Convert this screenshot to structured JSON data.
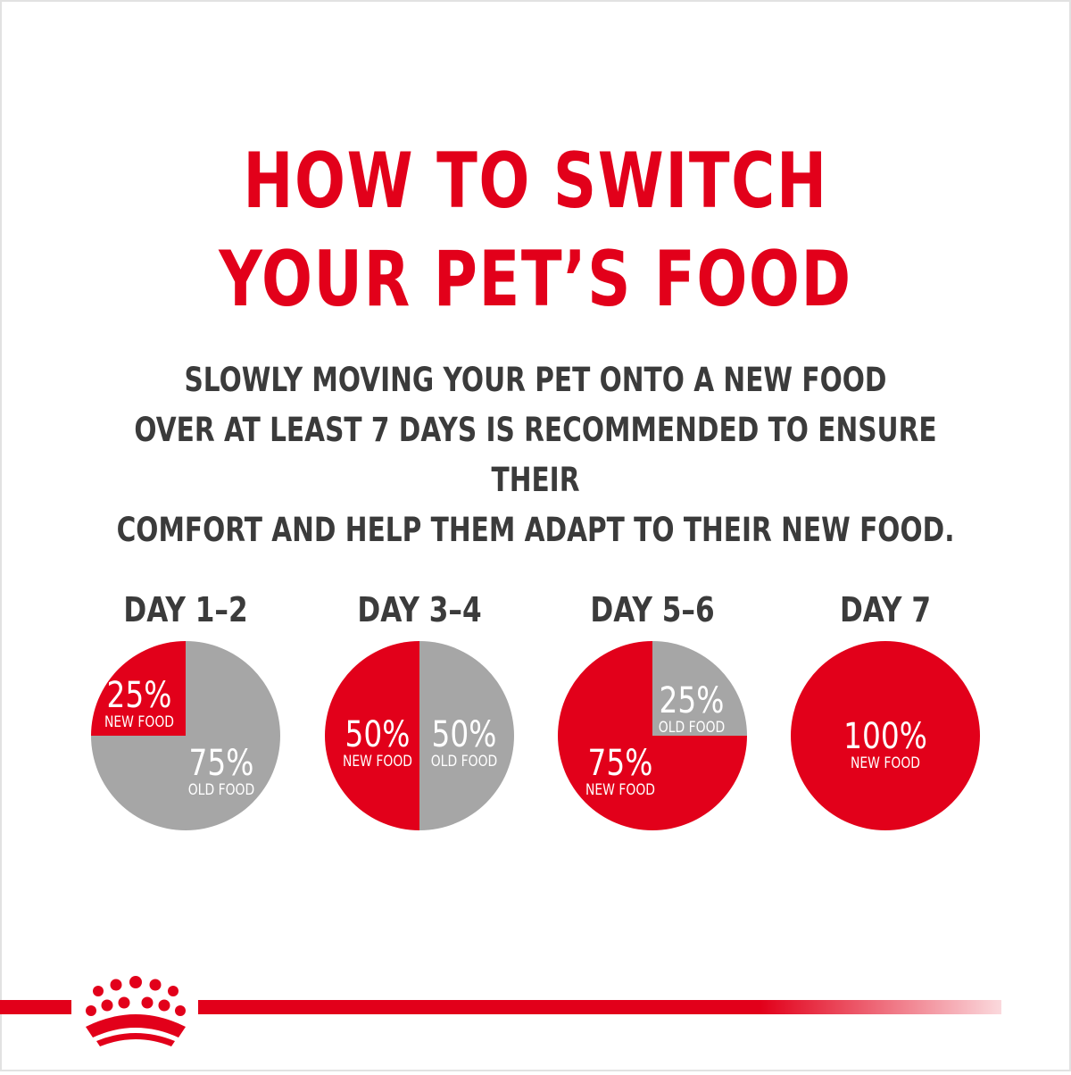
{
  "header": {
    "title_line1": "HOW TO SWITCH",
    "title_line2": "YOUR PET’S FOOD",
    "subtitle_line1": "SLOWLY MOVING YOUR PET ONTO A NEW FOOD",
    "subtitle_line2": "OVER AT LEAST 7 DAYS IS RECOMMENDED TO ENSURE THEIR",
    "subtitle_line3": "COMFORT AND HELP THEM ADAPT TO THEIR NEW FOOD."
  },
  "colors": {
    "new": "#e2001a",
    "old": "#a6a6a6",
    "heading": "#3b3b3b"
  },
  "chart_data": {
    "type": "pie",
    "charts": [
      {
        "label": "DAY 1–2",
        "new": 25,
        "old": 75,
        "new_text": "25%",
        "old_text": "75%"
      },
      {
        "label": "DAY 3–4",
        "new": 50,
        "old": 50,
        "new_text": "50%",
        "old_text": "50%"
      },
      {
        "label": "DAY 5–6",
        "new": 75,
        "old": 25,
        "new_text": "75%",
        "old_text": "25%"
      },
      {
        "label": "DAY 7",
        "new": 100,
        "old": 0,
        "new_text": "100%",
        "old_text": ""
      }
    ],
    "new_label": "NEW FOOD",
    "old_label": "OLD FOOD"
  },
  "footer": {
    "logo": "crown-logo"
  }
}
